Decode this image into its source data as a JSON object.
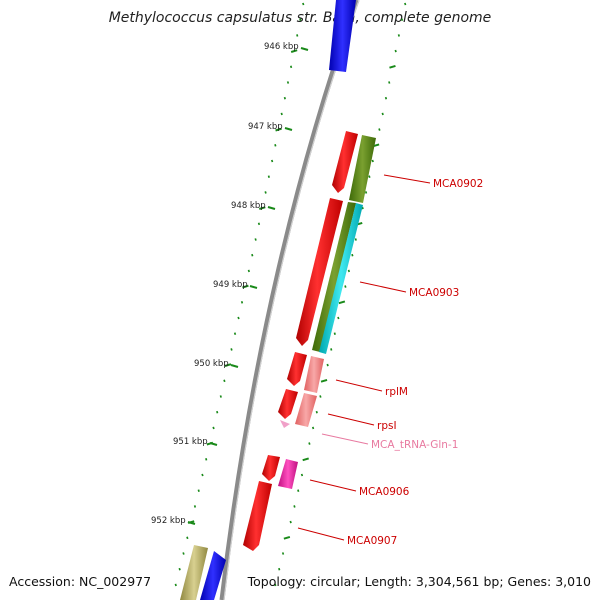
{
  "title": "Methylococcus capsulatus str. Bath, complete genome",
  "footer": {
    "accession": "Accession: NC_002977",
    "topology": "Topology: circular; Length: 3,304,561 bp; Genes: 3,010"
  },
  "ticks": [
    "946 kbp",
    "947 kbp",
    "948 kbp",
    "949 kbp",
    "950 kbp",
    "951 kbp",
    "952 kbp"
  ],
  "gene_labels": [
    {
      "name": "MCA0902",
      "color": "#cc0000"
    },
    {
      "name": "MCA0903",
      "color": "#cc0000"
    },
    {
      "name": "rplM",
      "color": "#cc0000"
    },
    {
      "name": "rpsI",
      "color": "#cc0000"
    },
    {
      "name": "MCA_tRNA-Gln-1",
      "color": "#e87aa0"
    },
    {
      "name": "MCA0906",
      "color": "#cc0000"
    },
    {
      "name": "MCA0907",
      "color": "#cc0000"
    }
  ],
  "colors": {
    "backbone": "#8a8a8a",
    "tick_marks": "#1a8a1a",
    "cds": "#ee0000",
    "gene": "#4a7a10",
    "rRNA_cyan": "#00c8d0",
    "pink": "#f08080",
    "magenta": "#e020a0",
    "tRNA": "#f090c0",
    "blue": "#0000ee",
    "khaki": "#b8b070"
  }
}
